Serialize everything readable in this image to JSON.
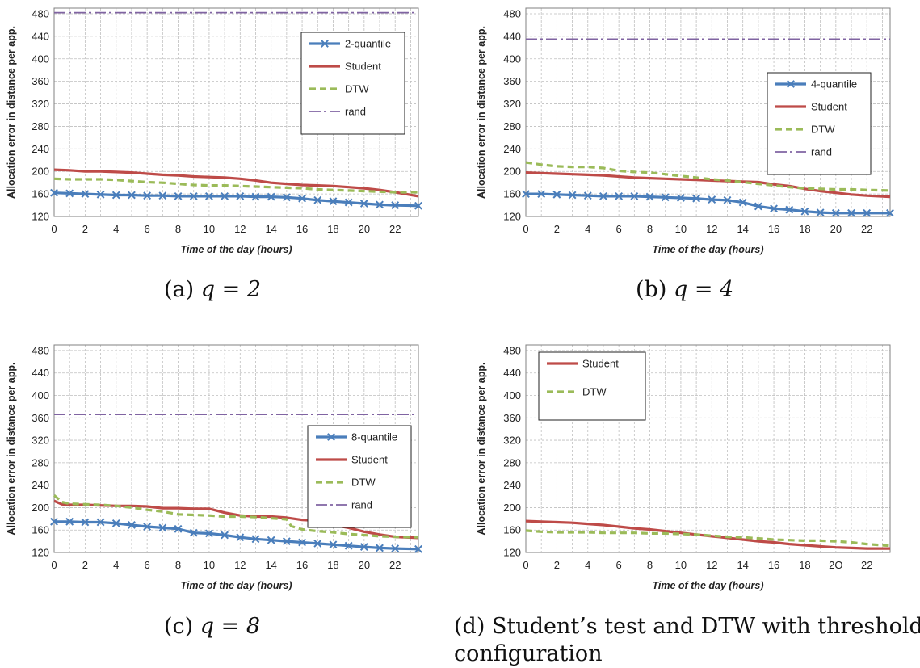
{
  "figure": {
    "captions": [
      {
        "label": "(a)",
        "math": "q = 2"
      },
      {
        "label": "(b)",
        "math": "q = 4"
      },
      {
        "label": "(c)",
        "math": "q = 8"
      },
      {
        "label": "(d)",
        "text_line1": "Student’s test and DTW with threshold",
        "text_line2": "configuration"
      }
    ]
  },
  "colors": {
    "quantile": "#4a7ebb",
    "student": "#be4b48",
    "dtw": "#9bbb59",
    "rand": "#8064a2",
    "grid": "#bfbfbf"
  },
  "chart_data": [
    {
      "type": "line",
      "ylabel": "Allocation error in distance per app.",
      "xlabel": "Time of the day (hours)",
      "ylim": [
        120,
        490
      ],
      "yticks": [
        120,
        160,
        200,
        240,
        280,
        320,
        360,
        400,
        440,
        480
      ],
      "xlim": [
        0,
        23.5
      ],
      "xticks": [
        "0",
        "2",
        "4",
        "6",
        "8",
        "10",
        "12",
        "14",
        "16",
        "18",
        "20",
        "22"
      ],
      "legend_position": "top-right",
      "series": [
        {
          "name": "2-quantile",
          "style": "quantile",
          "x": [
            0,
            1,
            2,
            3,
            4,
            5,
            6,
            7,
            8,
            9,
            10,
            11,
            12,
            13,
            14,
            15,
            16,
            17,
            18,
            19,
            20,
            21,
            22,
            23.5
          ],
          "values": [
            162,
            161,
            160,
            159,
            158,
            158,
            157,
            157,
            156,
            156,
            156,
            156,
            156,
            155,
            155,
            154,
            152,
            149,
            147,
            145,
            143,
            141,
            140,
            139
          ]
        },
        {
          "name": "Student",
          "style": "student",
          "x": [
            0,
            1,
            2,
            3,
            4,
            5,
            6,
            7,
            8,
            9,
            10,
            11,
            12,
            13,
            14,
            15,
            16,
            17,
            18,
            19,
            20,
            21,
            22,
            23.5
          ],
          "values": [
            203,
            202,
            200,
            200,
            199,
            198,
            196,
            194,
            193,
            191,
            190,
            189,
            187,
            184,
            180,
            178,
            176,
            175,
            174,
            172,
            170,
            167,
            163,
            156
          ]
        },
        {
          "name": "DTW",
          "style": "dtw",
          "x": [
            0,
            1,
            2,
            3,
            4,
            5,
            6,
            7,
            8,
            9,
            10,
            11,
            12,
            13,
            14,
            15,
            16,
            17,
            18,
            19,
            20,
            21,
            22,
            23.5
          ],
          "values": [
            187,
            186,
            186,
            186,
            185,
            183,
            181,
            180,
            178,
            176,
            175,
            175,
            174,
            173,
            172,
            171,
            170,
            168,
            167,
            166,
            165,
            164,
            163,
            163
          ]
        },
        {
          "name": "rand",
          "style": "rand",
          "x": [
            0,
            23.5
          ],
          "values": [
            482,
            482
          ]
        }
      ]
    },
    {
      "type": "line",
      "ylabel": "Allocation error in distance per app.",
      "xlabel": "Time of the day (hours)",
      "ylim": [
        120,
        490
      ],
      "yticks": [
        120,
        160,
        200,
        240,
        280,
        320,
        360,
        400,
        440,
        480
      ],
      "xlim": [
        0,
        23.5
      ],
      "xticks": [
        "0",
        "2",
        "4",
        "6",
        "8",
        "10",
        "12",
        "14",
        "16",
        "18",
        "20",
        "22"
      ],
      "legend_position": "middle-right",
      "series": [
        {
          "name": "4-quantile",
          "style": "quantile",
          "x": [
            0,
            1,
            2,
            3,
            4,
            5,
            6,
            7,
            8,
            9,
            10,
            11,
            12,
            13,
            14,
            15,
            16,
            17,
            18,
            19,
            20,
            21,
            22,
            23.5
          ],
          "values": [
            160,
            160,
            159,
            158,
            157,
            156,
            156,
            156,
            155,
            154,
            153,
            152,
            150,
            149,
            145,
            138,
            134,
            132,
            129,
            127,
            126,
            126,
            126,
            126
          ]
        },
        {
          "name": "Student",
          "style": "student",
          "x": [
            0,
            1,
            2,
            3,
            4,
            5,
            6,
            7,
            8,
            9,
            10,
            11,
            12,
            13,
            14,
            15,
            16,
            17,
            18,
            19,
            20,
            21,
            22,
            23.5
          ],
          "values": [
            198,
            197,
            196,
            195,
            194,
            193,
            191,
            189,
            188,
            187,
            186,
            185,
            184,
            183,
            182,
            181,
            177,
            174,
            169,
            165,
            162,
            159,
            157,
            155
          ]
        },
        {
          "name": "DTW",
          "style": "dtw",
          "x": [
            0,
            1,
            2,
            3,
            4,
            5,
            6,
            7,
            8,
            9,
            10,
            11,
            12,
            13,
            14,
            15,
            16,
            17,
            18,
            19,
            20,
            21,
            22,
            23.5
          ],
          "values": [
            216,
            212,
            209,
            208,
            208,
            206,
            201,
            199,
            198,
            195,
            192,
            189,
            186,
            184,
            181,
            178,
            175,
            172,
            170,
            169,
            168,
            168,
            167,
            166
          ]
        },
        {
          "name": "rand",
          "style": "rand",
          "x": [
            0,
            23.5
          ],
          "values": [
            435,
            435
          ]
        }
      ]
    },
    {
      "type": "line",
      "ylabel": "Allocation error in distance per app.",
      "xlabel": "Time of the day (hours)",
      "ylim": [
        120,
        490
      ],
      "yticks": [
        120,
        160,
        200,
        240,
        280,
        320,
        360,
        400,
        440,
        480
      ],
      "xlim": [
        0,
        23.5
      ],
      "xticks": [
        "0",
        "2",
        "4",
        "6",
        "8",
        "10",
        "12",
        "14",
        "16",
        "18",
        "20",
        "22"
      ],
      "legend_position": "bottom-right",
      "series": [
        {
          "name": "8-quantile",
          "style": "quantile",
          "x": [
            0,
            1,
            2,
            3,
            4,
            5,
            6,
            7,
            8,
            9,
            10,
            11,
            12,
            13,
            14,
            15,
            16,
            17,
            18,
            19,
            20,
            21,
            22,
            23.5
          ],
          "values": [
            175,
            175,
            174,
            174,
            172,
            169,
            166,
            164,
            162,
            155,
            154,
            151,
            147,
            144,
            142,
            140,
            138,
            136,
            134,
            132,
            130,
            128,
            127,
            126
          ]
        },
        {
          "name": "Student",
          "style": "student",
          "x": [
            0,
            0.5,
            1,
            2,
            3,
            4,
            5,
            6,
            7,
            8,
            9,
            10,
            11,
            12,
            13,
            14,
            15,
            16,
            17,
            18,
            19,
            20,
            21,
            22,
            23.5
          ],
          "values": [
            212,
            206,
            205,
            205,
            204,
            203,
            203,
            202,
            199,
            199,
            198,
            198,
            191,
            186,
            184,
            184,
            182,
            178,
            177,
            169,
            164,
            157,
            152,
            148,
            146
          ]
        },
        {
          "name": "DTW",
          "style": "dtw",
          "x": [
            0,
            0.5,
            1,
            2,
            3,
            4,
            5,
            6,
            7,
            8,
            9,
            10,
            11,
            12,
            13,
            14,
            15,
            15.3,
            16,
            17,
            18,
            19,
            20,
            21,
            22,
            23.5
          ],
          "values": [
            222,
            210,
            207,
            206,
            205,
            203,
            200,
            196,
            193,
            188,
            187,
            186,
            184,
            184,
            183,
            181,
            179,
            167,
            161,
            158,
            156,
            153,
            151,
            149,
            148,
            147
          ]
        },
        {
          "name": "rand",
          "style": "rand",
          "x": [
            0,
            23.5
          ],
          "values": [
            366,
            366
          ]
        }
      ]
    },
    {
      "type": "line",
      "ylabel": "Allocation error in distance per app.",
      "xlabel": "Time of the day (hours)",
      "ylim": [
        120,
        490
      ],
      "yticks": [
        120,
        160,
        200,
        240,
        280,
        320,
        360,
        400,
        440,
        480
      ],
      "xlim": [
        0,
        23.5
      ],
      "xticks": [
        "0",
        "2",
        "4",
        "6",
        "8",
        "10",
        "12",
        "14",
        "16",
        "18",
        "2O",
        "22"
      ],
      "legend_position": "top-left",
      "series": [
        {
          "name": "Student",
          "style": "student",
          "x": [
            0,
            1,
            2,
            3,
            4,
            5,
            6,
            7,
            8,
            9,
            10,
            11,
            12,
            13,
            14,
            15,
            16,
            17,
            18,
            19,
            20,
            21,
            22,
            23.5
          ],
          "values": [
            176,
            175,
            174,
            173,
            171,
            169,
            166,
            163,
            161,
            158,
            155,
            152,
            149,
            146,
            143,
            140,
            138,
            135,
            133,
            131,
            129,
            128,
            127,
            127
          ]
        },
        {
          "name": "DTW",
          "style": "dtw",
          "x": [
            0,
            1,
            2,
            3,
            4,
            5,
            6,
            7,
            8,
            9,
            10,
            11,
            12,
            13,
            14,
            15,
            16,
            17,
            18,
            19,
            20,
            21,
            22,
            23.5
          ],
          "values": [
            159,
            157,
            156,
            156,
            156,
            155,
            155,
            155,
            154,
            154,
            153,
            152,
            150,
            148,
            147,
            145,
            143,
            142,
            141,
            141,
            140,
            138,
            135,
            132
          ]
        }
      ]
    }
  ]
}
